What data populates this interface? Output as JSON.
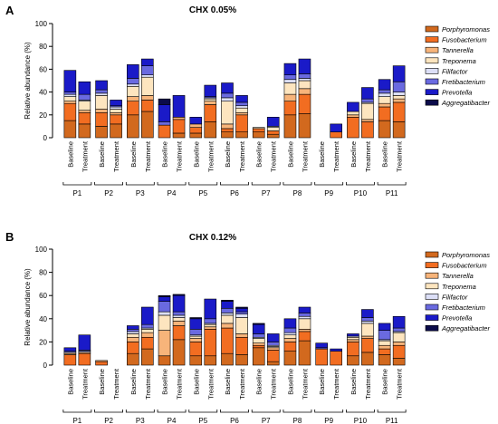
{
  "figure": {
    "panels": [
      "A",
      "B"
    ]
  },
  "chart_data": [
    {
      "type": "bar",
      "stacked": true,
      "panel": "A",
      "title": "CHX 0.05%",
      "ylabel": "Relative abundance (%)",
      "xlabel": "",
      "ylim": [
        0,
        100
      ],
      "yticks": [
        0,
        20,
        40,
        60,
        80,
        100
      ],
      "grid": false,
      "legend_position": "right",
      "groups": [
        "P1",
        "P2",
        "P3",
        "P4",
        "P5",
        "P6",
        "P7",
        "P8",
        "P9",
        "P10",
        "P11"
      ],
      "conditions": [
        "Baseline",
        "Treatment"
      ],
      "series": [
        {
          "name": "Porphyromonas",
          "color": "#d2691e",
          "values": [
            [
              15,
              12
            ],
            [
              10,
              12
            ],
            [
              20,
              23
            ],
            [
              0,
              4
            ],
            [
              4,
              14
            ],
            [
              5,
              5
            ],
            [
              5,
              3
            ],
            [
              20,
              21
            ],
            [
              0,
              0
            ],
            [
              0,
              0
            ],
            [
              15,
              14
            ]
          ]
        },
        {
          "name": "Fusobacterium",
          "color": "#f26d21",
          "values": [
            [
              15,
              10
            ],
            [
              12,
              8
            ],
            [
              12,
              10
            ],
            [
              11,
              12
            ],
            [
              5,
              15
            ],
            [
              3,
              15
            ],
            [
              3,
              3
            ],
            [
              12,
              17
            ],
            [
              0,
              5
            ],
            [
              18,
              14
            ],
            [
              12,
              17
            ]
          ]
        },
        {
          "name": "Tannerella",
          "color": "#f7b47a",
          "values": [
            [
              2,
              2
            ],
            [
              3,
              2
            ],
            [
              4,
              4
            ],
            [
              0,
              2
            ],
            [
              3,
              3
            ],
            [
              4,
              2
            ],
            [
              0,
              0
            ],
            [
              6,
              5
            ],
            [
              0,
              0
            ],
            [
              2,
              2
            ],
            [
              3,
              3
            ]
          ]
        },
        {
          "name": "Treponema",
          "color": "#fde5bf",
          "values": [
            [
              4,
              8
            ],
            [
              12,
              3
            ],
            [
              9,
              16
            ],
            [
              0,
              0
            ],
            [
              0,
              2
            ],
            [
              20,
              4
            ],
            [
              1,
              3
            ],
            [
              10,
              7
            ],
            [
              0,
              0
            ],
            [
              3,
              14
            ],
            [
              6,
              3
            ]
          ]
        },
        {
          "name": "Filifactor",
          "color": "#dcdff7",
          "values": [
            [
              2,
              1
            ],
            [
              2,
              2
            ],
            [
              2,
              2
            ],
            [
              0,
              0
            ],
            [
              0,
              1
            ],
            [
              3,
              2
            ],
            [
              0,
              1
            ],
            [
              3,
              2
            ],
            [
              0,
              0
            ],
            [
              0,
              1
            ],
            [
              3,
              3
            ]
          ]
        },
        {
          "name": "Fretibacterium",
          "color": "#6a6ae0",
          "values": [
            [
              2,
              5
            ],
            [
              3,
              1
            ],
            [
              5,
              8
            ],
            [
              3,
              0
            ],
            [
              0,
              1
            ],
            [
              4,
              3
            ],
            [
              0,
              0
            ],
            [
              4,
              4
            ],
            [
              0,
              0
            ],
            [
              0,
              3
            ],
            [
              3,
              9
            ]
          ]
        },
        {
          "name": "Prevotella",
          "color": "#1a1ac8",
          "values": [
            [
              19,
              11
            ],
            [
              8,
              5
            ],
            [
              12,
              6
            ],
            [
              15,
              19
            ],
            [
              6,
              10
            ],
            [
              9,
              6
            ],
            [
              0,
              8
            ],
            [
              10,
              13
            ],
            [
              0,
              7
            ],
            [
              8,
              10
            ],
            [
              9,
              14
            ]
          ]
        },
        {
          "name": "Aggregatibacter",
          "color": "#0b0b4a",
          "values": [
            [
              0,
              0
            ],
            [
              0,
              0
            ],
            [
              0,
              0
            ],
            [
              5,
              0
            ],
            [
              0,
              0
            ],
            [
              0,
              0
            ],
            [
              0,
              0
            ],
            [
              0,
              0
            ],
            [
              0,
              0
            ],
            [
              0,
              0
            ],
            [
              0,
              0
            ]
          ]
        }
      ]
    },
    {
      "type": "bar",
      "stacked": true,
      "panel": "B",
      "title": "CHX 0.12%",
      "ylabel": "Relative abundance (%)",
      "xlabel": "",
      "ylim": [
        0,
        100
      ],
      "yticks": [
        0,
        20,
        40,
        60,
        80,
        100
      ],
      "grid": false,
      "legend_position": "right",
      "groups": [
        "P1",
        "P2",
        "P3",
        "P4",
        "P5",
        "P6",
        "P7",
        "P8",
        "P9",
        "P10",
        "P11"
      ],
      "conditions": [
        "Baseline",
        "Treatment"
      ],
      "series": [
        {
          "name": "Porphyromonas",
          "color": "#d2691e",
          "values": [
            [
              0,
              0
            ],
            [
              0,
              0
            ],
            [
              10,
              14
            ],
            [
              8,
              22
            ],
            [
              8,
              8
            ],
            [
              10,
              9
            ],
            [
              15,
              3
            ],
            [
              12,
              21
            ],
            [
              0,
              0
            ],
            [
              8,
              11
            ],
            [
              9,
              6
            ]
          ]
        },
        {
          "name": "Fusobacterium",
          "color": "#f26d21",
          "values": [
            [
              9,
              10
            ],
            [
              3,
              0
            ],
            [
              10,
              10
            ],
            [
              0,
              12
            ],
            [
              12,
              23
            ],
            [
              22,
              15
            ],
            [
              2,
              10
            ],
            [
              8,
              8
            ],
            [
              14,
              12
            ],
            [
              12,
              12
            ],
            [
              5,
              11
            ]
          ]
        },
        {
          "name": "Tannerella",
          "color": "#f7b47a",
          "values": [
            [
              1,
              1
            ],
            [
              1,
              0
            ],
            [
              4,
              4
            ],
            [
              22,
              4
            ],
            [
              3,
              2
            ],
            [
              4,
              3
            ],
            [
              2,
              2
            ],
            [
              3,
              2
            ],
            [
              0,
              0
            ],
            [
              2,
              2
            ],
            [
              3,
              3
            ]
          ]
        },
        {
          "name": "Treponema",
          "color": "#fde5bf",
          "values": [
            [
              1,
              0
            ],
            [
              0,
              0
            ],
            [
              3,
              3
            ],
            [
              13,
              3
            ],
            [
              2,
              2
            ],
            [
              7,
              14
            ],
            [
              4,
              1
            ],
            [
              3,
              9
            ],
            [
              0,
              0
            ],
            [
              2,
              11
            ],
            [
              4,
              8
            ]
          ]
        },
        {
          "name": "Filifactor",
          "color": "#dcdff7",
          "values": [
            [
              0,
              1
            ],
            [
              0,
              0
            ],
            [
              2,
              1
            ],
            [
              3,
              2
            ],
            [
              1,
              1
            ],
            [
              2,
              3
            ],
            [
              1,
              1
            ],
            [
              2,
              2
            ],
            [
              0,
              0
            ],
            [
              1,
              2
            ],
            [
              1,
              1
            ]
          ]
        },
        {
          "name": "Fretibacterium",
          "color": "#6a6ae0",
          "values": [
            [
              1,
              1
            ],
            [
              0,
              0
            ],
            [
              2,
              3
            ],
            [
              9,
              3
            ],
            [
              5,
              4
            ],
            [
              4,
              2
            ],
            [
              3,
              3
            ],
            [
              4,
              3
            ],
            [
              1,
              0
            ],
            [
              0,
              3
            ],
            [
              8,
              3
            ]
          ]
        },
        {
          "name": "Prevotella",
          "color": "#1a1ac8",
          "values": [
            [
              3,
              13
            ],
            [
              0,
              0
            ],
            [
              3,
              15
            ],
            [
              4,
              14
            ],
            [
              9,
              17
            ],
            [
              6,
              3
            ],
            [
              8,
              7
            ],
            [
              8,
              5
            ],
            [
              4,
              2
            ],
            [
              2,
              7
            ],
            [
              6,
              10
            ]
          ]
        },
        {
          "name": "Aggregatibacter",
          "color": "#0b0b4a",
          "values": [
            [
              0,
              0
            ],
            [
              0,
              0
            ],
            [
              0,
              0
            ],
            [
              1,
              1
            ],
            [
              1,
              0
            ],
            [
              1,
              1
            ],
            [
              1,
              0
            ],
            [
              0,
              0
            ],
            [
              0,
              0
            ],
            [
              0,
              0
            ],
            [
              0,
              0
            ]
          ]
        }
      ]
    }
  ]
}
